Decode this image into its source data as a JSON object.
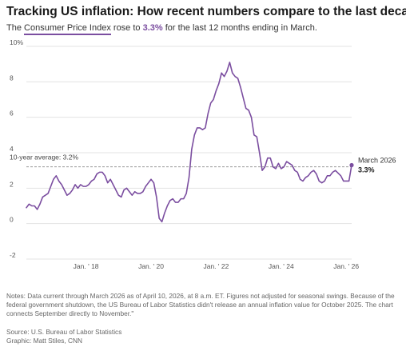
{
  "header": {
    "title": "Tracking US inflation: How recent numbers compare to the last decade",
    "subtitle_pre": "The ",
    "subtitle_highlight": "Consumer Price Index",
    "subtitle_mid": " rose to ",
    "subtitle_value": "3.3%",
    "subtitle_post": " for the last 12 months ending in March."
  },
  "colors": {
    "line": "#7b4ea0",
    "grid": "#e3e3e3",
    "reference": "#888888",
    "text": "#262626"
  },
  "chart_data": {
    "type": "line",
    "y_ticks": [
      {
        "value": 10,
        "label": "10%"
      },
      {
        "value": 8,
        "label": "8"
      },
      {
        "value": 6,
        "label": "6"
      },
      {
        "value": 4,
        "label": "4"
      },
      {
        "value": 2,
        "label": "2"
      },
      {
        "value": 0,
        "label": "0"
      },
      {
        "value": -2,
        "label": "-2"
      }
    ],
    "ylim": [
      -2,
      10
    ],
    "x_ticks": [
      {
        "date": "2018-01",
        "label": "Jan. ' 18"
      },
      {
        "date": "2020-01",
        "label": "Jan. ' 20"
      },
      {
        "date": "2022-01",
        "label": "Jan. ' 22"
      },
      {
        "date": "2024-01",
        "label": "Jan. ' 24"
      },
      {
        "date": "2026-01",
        "label": "Jan. ' 26"
      }
    ],
    "xlim": [
      "2016-03",
      "2026-03"
    ],
    "grid": true,
    "reference_line": {
      "value": 3.2,
      "label": "10-year average: 3.2%"
    },
    "annotation": {
      "date": "2026-03",
      "label": "March 2026",
      "value_label": "3.3%",
      "value": 3.3
    },
    "series": [
      {
        "points": [
          [
            "2016-03",
            0.9
          ],
          [
            "2016-04",
            1.1
          ],
          [
            "2016-05",
            1.0
          ],
          [
            "2016-06",
            1.0
          ],
          [
            "2016-07",
            0.8
          ],
          [
            "2016-08",
            1.1
          ],
          [
            "2016-09",
            1.5
          ],
          [
            "2016-10",
            1.6
          ],
          [
            "2016-11",
            1.7
          ],
          [
            "2016-12",
            2.1
          ],
          [
            "2017-01",
            2.5
          ],
          [
            "2017-02",
            2.7
          ],
          [
            "2017-03",
            2.4
          ],
          [
            "2017-04",
            2.2
          ],
          [
            "2017-05",
            1.9
          ],
          [
            "2017-06",
            1.6
          ],
          [
            "2017-07",
            1.7
          ],
          [
            "2017-08",
            1.9
          ],
          [
            "2017-09",
            2.2
          ],
          [
            "2017-10",
            2.0
          ],
          [
            "2017-11",
            2.2
          ],
          [
            "2017-12",
            2.1
          ],
          [
            "2018-01",
            2.1
          ],
          [
            "2018-02",
            2.2
          ],
          [
            "2018-03",
            2.4
          ],
          [
            "2018-04",
            2.5
          ],
          [
            "2018-05",
            2.8
          ],
          [
            "2018-06",
            2.9
          ],
          [
            "2018-07",
            2.9
          ],
          [
            "2018-08",
            2.7
          ],
          [
            "2018-09",
            2.3
          ],
          [
            "2018-10",
            2.5
          ],
          [
            "2018-11",
            2.2
          ],
          [
            "2018-12",
            1.9
          ],
          [
            "2019-01",
            1.6
          ],
          [
            "2019-02",
            1.5
          ],
          [
            "2019-03",
            1.9
          ],
          [
            "2019-04",
            2.0
          ],
          [
            "2019-05",
            1.8
          ],
          [
            "2019-06",
            1.6
          ],
          [
            "2019-07",
            1.8
          ],
          [
            "2019-08",
            1.7
          ],
          [
            "2019-09",
            1.7
          ],
          [
            "2019-10",
            1.8
          ],
          [
            "2019-11",
            2.1
          ],
          [
            "2019-12",
            2.3
          ],
          [
            "2020-01",
            2.5
          ],
          [
            "2020-02",
            2.3
          ],
          [
            "2020-03",
            1.5
          ],
          [
            "2020-04",
            0.3
          ],
          [
            "2020-05",
            0.1
          ],
          [
            "2020-06",
            0.6
          ],
          [
            "2020-07",
            1.0
          ],
          [
            "2020-08",
            1.3
          ],
          [
            "2020-09",
            1.4
          ],
          [
            "2020-10",
            1.2
          ],
          [
            "2020-11",
            1.2
          ],
          [
            "2020-12",
            1.4
          ],
          [
            "2021-01",
            1.4
          ],
          [
            "2021-02",
            1.7
          ],
          [
            "2021-03",
            2.6
          ],
          [
            "2021-04",
            4.2
          ],
          [
            "2021-05",
            5.0
          ],
          [
            "2021-06",
            5.4
          ],
          [
            "2021-07",
            5.4
          ],
          [
            "2021-08",
            5.3
          ],
          [
            "2021-09",
            5.4
          ],
          [
            "2021-10",
            6.2
          ],
          [
            "2021-11",
            6.8
          ],
          [
            "2021-12",
            7.0
          ],
          [
            "2022-01",
            7.5
          ],
          [
            "2022-02",
            7.9
          ],
          [
            "2022-03",
            8.5
          ],
          [
            "2022-04",
            8.3
          ],
          [
            "2022-05",
            8.6
          ],
          [
            "2022-06",
            9.1
          ],
          [
            "2022-07",
            8.5
          ],
          [
            "2022-08",
            8.3
          ],
          [
            "2022-09",
            8.2
          ],
          [
            "2022-10",
            7.7
          ],
          [
            "2022-11",
            7.1
          ],
          [
            "2022-12",
            6.5
          ],
          [
            "2023-01",
            6.4
          ],
          [
            "2023-02",
            6.0
          ],
          [
            "2023-03",
            5.0
          ],
          [
            "2023-04",
            4.9
          ],
          [
            "2023-05",
            4.0
          ],
          [
            "2023-06",
            3.0
          ],
          [
            "2023-07",
            3.2
          ],
          [
            "2023-08",
            3.7
          ],
          [
            "2023-09",
            3.7
          ],
          [
            "2023-10",
            3.2
          ],
          [
            "2023-11",
            3.1
          ],
          [
            "2023-12",
            3.4
          ],
          [
            "2024-01",
            3.1
          ],
          [
            "2024-02",
            3.2
          ],
          [
            "2024-03",
            3.5
          ],
          [
            "2024-04",
            3.4
          ],
          [
            "2024-05",
            3.3
          ],
          [
            "2024-06",
            3.0
          ],
          [
            "2024-07",
            2.9
          ],
          [
            "2024-08",
            2.5
          ],
          [
            "2024-09",
            2.4
          ],
          [
            "2024-10",
            2.6
          ],
          [
            "2024-11",
            2.7
          ],
          [
            "2024-12",
            2.9
          ],
          [
            "2025-01",
            3.0
          ],
          [
            "2025-02",
            2.8
          ],
          [
            "2025-03",
            2.4
          ],
          [
            "2025-04",
            2.3
          ],
          [
            "2025-05",
            2.4
          ],
          [
            "2025-06",
            2.7
          ],
          [
            "2025-07",
            2.7
          ],
          [
            "2025-08",
            2.9
          ],
          [
            "2025-09",
            3.0
          ],
          [
            "2025-11",
            2.7
          ],
          [
            "2025-12",
            2.4
          ],
          [
            "2026-01",
            2.4
          ],
          [
            "2026-02",
            2.4
          ],
          [
            "2026-03",
            3.3
          ]
        ]
      }
    ]
  },
  "footer": {
    "notes": "Notes: Data current through March 2026 as of April 10, 2026, at 8 a.m. ET. Figures not adjusted for seasonal swings. Because of the federal government shutdown, the US Bureau of Labor Statistics didn't release an annual inflation value for October 2025. The chart connects September directly to November.\"",
    "source": "Source: U.S. Bureau of Labor Statistics",
    "graphic": "Graphic: Matt Stiles, CNN"
  }
}
